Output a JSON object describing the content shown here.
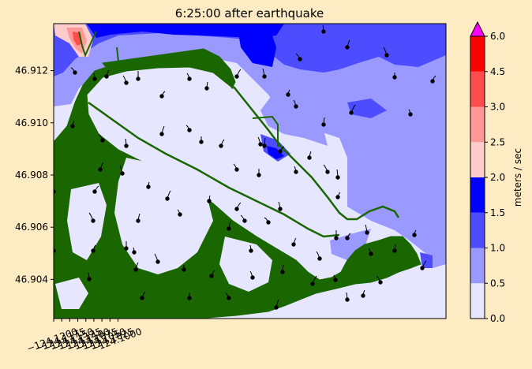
{
  "chart_data": {
    "type": "heatmap",
    "title": "6:25:00 after earthquake",
    "xlim": [
      -124.12,
      -123.998
    ],
    "ylim": [
      46.9025,
      46.9138
    ],
    "xticks": [
      -124.12,
      -124.1175,
      -124.115,
      -124.1125,
      -124.11,
      -124.1075,
      -124.105,
      -124.1025,
      -124.1
    ],
    "xtick_labels": [
      "−124.1200",
      "−124.1175",
      "−124.1150",
      "−124.1125",
      "−124.1100",
      "−124.1075",
      "−124.1050",
      "−124.1025",
      "−124.1000"
    ],
    "yticks": [
      46.904,
      46.906,
      46.908,
      46.91,
      46.912
    ],
    "ytick_labels": [
      "46.904",
      "46.906",
      "46.908",
      "46.910",
      "46.912"
    ],
    "colorbar": {
      "label": "meters / sec",
      "bounds": [
        0.0,
        0.5,
        1.0,
        1.5,
        2.0,
        2.5,
        3.0,
        4.5,
        6.0
      ],
      "tick_labels": [
        "0.0",
        "0.5",
        "1.0",
        "1.5",
        "2.0",
        "2.5",
        "3.0",
        "4.5",
        "6.0"
      ],
      "colors": [
        "#e6e6ff",
        "#9999ff",
        "#4d4dff",
        "#0000ff",
        "#ffcccc",
        "#ff9999",
        "#ff4d4d",
        "#ff0000"
      ],
      "extend_color": "#ff00ff",
      "extend": "max"
    },
    "land_color": "#1a6600"
  }
}
